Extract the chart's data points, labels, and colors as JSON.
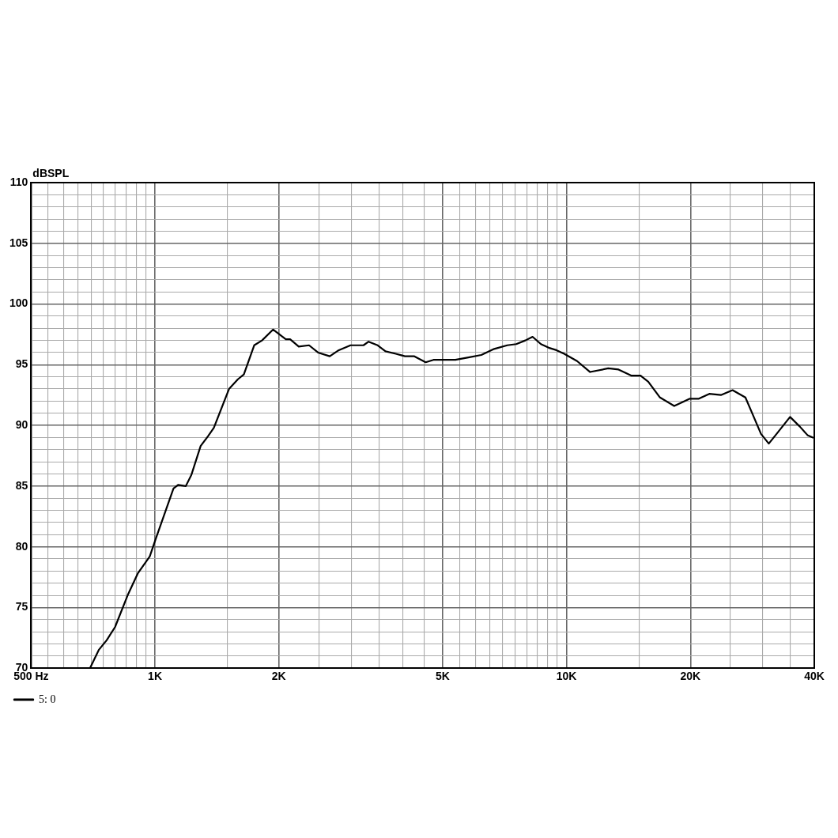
{
  "chart_data": {
    "type": "line",
    "ylabel": "dBSPL",
    "log": "x",
    "grid": true,
    "legend": "bottom left",
    "marker": "none",
    "line_style": "solid",
    "xlim": [
      500,
      40000
    ],
    "ylim": [
      70,
      110
    ],
    "xticks": [
      {
        "value": 500,
        "label": "500 Hz"
      },
      {
        "value": 550,
        "label": null
      },
      {
        "value": 600,
        "label": null
      },
      {
        "value": 650,
        "label": null
      },
      {
        "value": 700,
        "label": null
      },
      {
        "value": 750,
        "label": null
      },
      {
        "value": 800,
        "label": null
      },
      {
        "value": 850,
        "label": null
      },
      {
        "value": 900,
        "label": null
      },
      {
        "value": 950,
        "label": null
      },
      {
        "value": 1000,
        "label": "1K"
      },
      {
        "value": 1500,
        "label": null
      },
      {
        "value": 2000,
        "label": "2K"
      },
      {
        "value": 2500,
        "label": null
      },
      {
        "value": 3000,
        "label": null
      },
      {
        "value": 3500,
        "label": null
      },
      {
        "value": 4000,
        "label": null
      },
      {
        "value": 4500,
        "label": null
      },
      {
        "value": 5000,
        "label": "5K"
      },
      {
        "value": 5500,
        "label": null
      },
      {
        "value": 6000,
        "label": null
      },
      {
        "value": 6500,
        "label": null
      },
      {
        "value": 7000,
        "label": null
      },
      {
        "value": 7500,
        "label": null
      },
      {
        "value": 8000,
        "label": null
      },
      {
        "value": 8500,
        "label": null
      },
      {
        "value": 9000,
        "label": null
      },
      {
        "value": 9500,
        "label": null
      },
      {
        "value": 10000,
        "label": "10K"
      },
      {
        "value": 15000,
        "label": null
      },
      {
        "value": 20000,
        "label": "20K"
      },
      {
        "value": 25000,
        "label": null
      },
      {
        "value": 30000,
        "label": null
      },
      {
        "value": 35000,
        "label": null
      },
      {
        "value": 40000,
        "label": "40K"
      }
    ],
    "yticks": [
      70,
      {
        "value": 71,
        "label": null
      },
      {
        "value": 72,
        "label": null
      },
      {
        "value": 73,
        "label": null
      },
      {
        "value": 74,
        "label": null
      },
      75,
      {
        "value": 76,
        "label": null
      },
      {
        "value": 77,
        "label": null
      },
      {
        "value": 78,
        "label": null
      },
      {
        "value": 79,
        "label": null
      },
      80,
      {
        "value": 81,
        "label": null
      },
      {
        "value": 82,
        "label": null
      },
      {
        "value": 83,
        "label": null
      },
      {
        "value": 84,
        "label": null
      },
      85,
      {
        "value": 86,
        "label": null
      },
      {
        "value": 87,
        "label": null
      },
      {
        "value": 88,
        "label": null
      },
      {
        "value": 89,
        "label": null
      },
      90,
      {
        "value": 91,
        "label": null
      },
      {
        "value": 92,
        "label": null
      },
      {
        "value": 93,
        "label": null
      },
      {
        "value": 94,
        "label": null
      },
      95,
      {
        "value": 96,
        "label": null
      },
      {
        "value": 97,
        "label": null
      },
      {
        "value": 98,
        "label": null
      },
      {
        "value": 99,
        "label": null
      },
      100,
      {
        "value": 101,
        "label": null
      },
      {
        "value": 102,
        "label": null
      },
      {
        "value": 103,
        "label": null
      },
      {
        "value": 104,
        "label": null
      },
      105,
      {
        "value": 106,
        "label": null
      },
      {
        "value": 107,
        "label": null
      },
      {
        "value": 108,
        "label": null
      },
      {
        "value": 109,
        "label": null
      },
      110
    ],
    "series": [
      {
        "name": "5: 0",
        "color": "#000000",
        "x": [
          695,
          730,
          763,
          800,
          858,
          908,
          971,
          1003,
          1109,
          1138,
          1188,
          1225,
          1291,
          1345,
          1390,
          1513,
          1590,
          1644,
          1742,
          1820,
          1937,
          2079,
          2130,
          2235,
          2368,
          2490,
          2659,
          2797,
          2987,
          3211,
          3304,
          3476,
          3632,
          3848,
          4048,
          4259,
          4547,
          4749,
          5030,
          5370,
          5775,
          6208,
          6673,
          7178,
          7549,
          7942,
          8270,
          8664,
          9050,
          9451,
          9870,
          10610,
          11410,
          12630,
          13380,
          14390,
          15130,
          15800,
          16870,
          18270,
          19940,
          20970,
          22230,
          23720,
          25320,
          27210,
          28430,
          29690,
          31010,
          32390,
          34930,
          36900,
          38510,
          39680
        ],
        "values": [
          70,
          71.5,
          72.3,
          73.4,
          76,
          77.8,
          79.2,
          80.6,
          84.8,
          85.1,
          85,
          85.9,
          88.3,
          89.1,
          89.8,
          93,
          93.8,
          94.2,
          96.6,
          97,
          97.9,
          97.1,
          97.1,
          96.5,
          96.6,
          96,
          95.7,
          96.2,
          96.6,
          96.6,
          96.9,
          96.6,
          96.1,
          95.9,
          95.7,
          95.7,
          95.2,
          95.4,
          95.4,
          95.4,
          95.6,
          95.8,
          96.3,
          96.6,
          96.7,
          97,
          97.3,
          96.7,
          96.4,
          96.2,
          95.9,
          95.3,
          94.4,
          94.7,
          94.6,
          94.1,
          94.1,
          93.6,
          92.3,
          91.6,
          92.2,
          92.2,
          92.6,
          92.5,
          92.9,
          92.3,
          90.8,
          89.3,
          88.5,
          89.3,
          90.7,
          89.9,
          89.2,
          89
        ]
      }
    ]
  }
}
